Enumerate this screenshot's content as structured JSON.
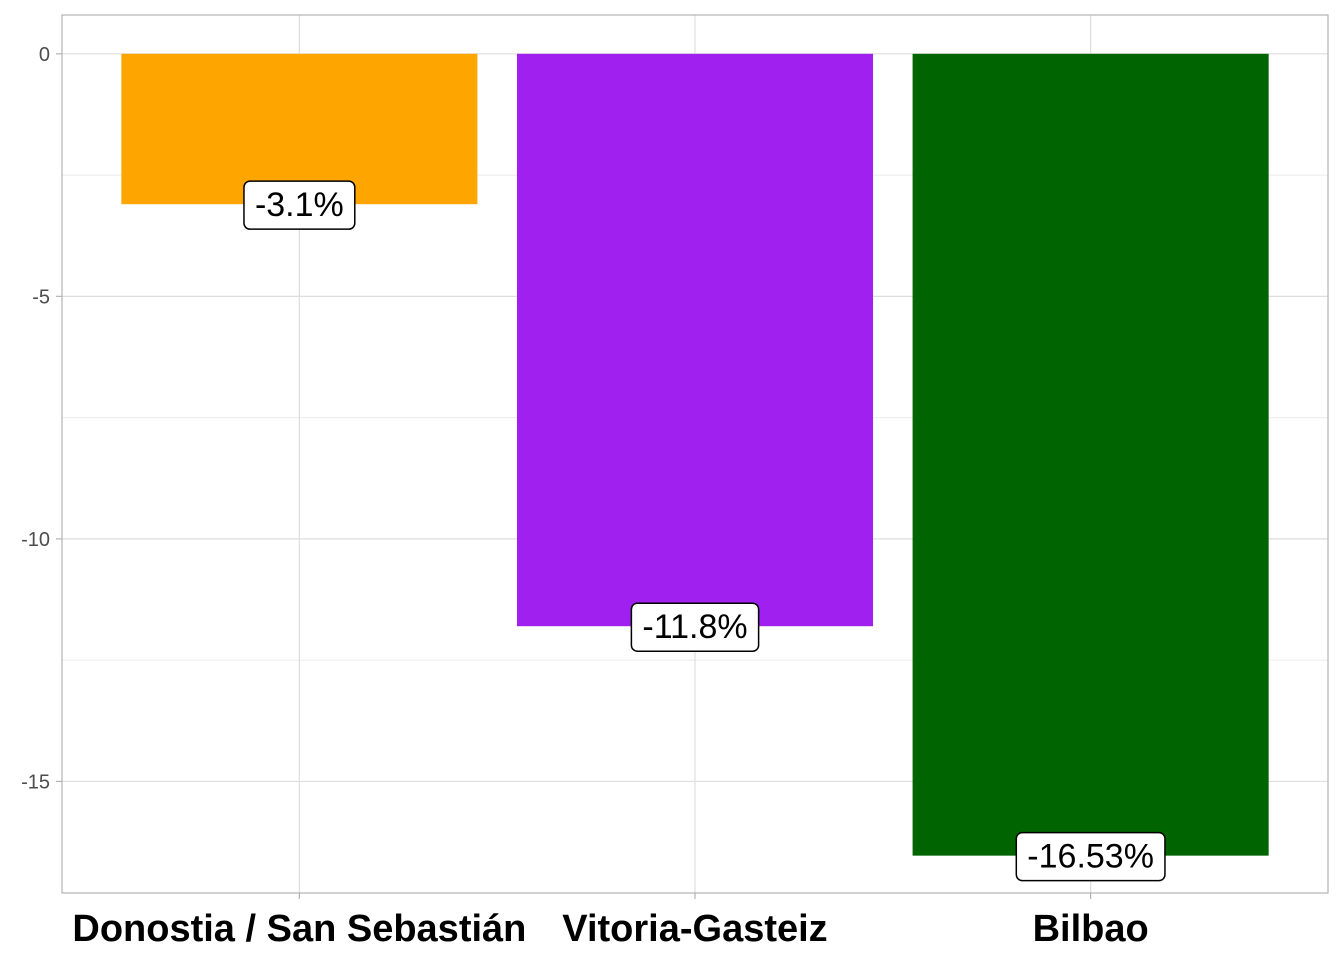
{
  "chart_data": {
    "type": "bar",
    "title": "",
    "xlabel": "",
    "ylabel": "",
    "categories": [
      "Donostia / San Sebastián",
      "Vitoria-Gasteiz",
      "Bilbao"
    ],
    "values": [
      -3.1,
      -11.8,
      -16.53
    ],
    "data_labels": [
      "-3.1%",
      "-11.8%",
      "-16.53%"
    ],
    "colors": [
      "#FFA500",
      "#A020F0",
      "#006400"
    ],
    "ylim": [
      -17.3,
      0.8
    ],
    "yticks": [
      0,
      -5,
      -10,
      -15
    ],
    "ytick_labels": [
      "0",
      "-5",
      "-10",
      "-15"
    ],
    "grid": true,
    "legend": "none"
  }
}
